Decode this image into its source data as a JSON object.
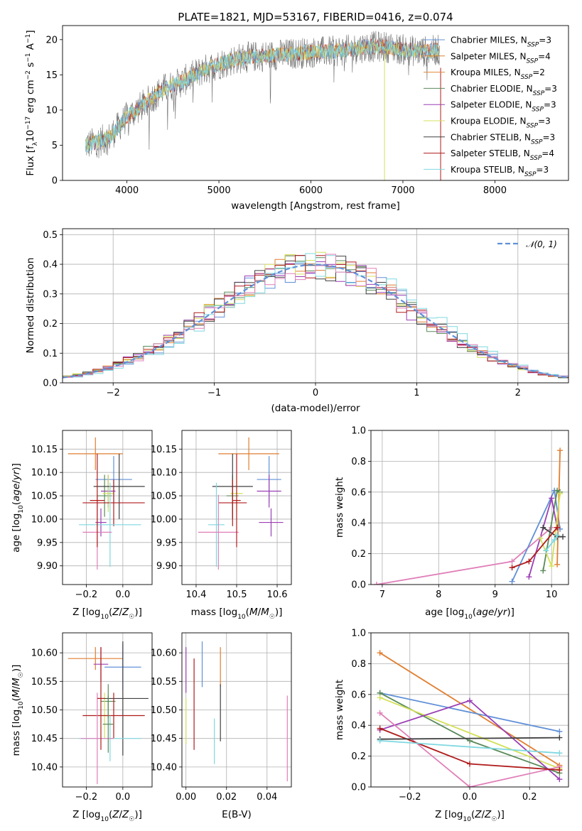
{
  "colors": {
    "chab_miles": "#6090d8",
    "salp_miles": "#e07f30",
    "kroupa_miles": "#e0883a",
    "chab_elodie": "#5a8a5a",
    "salp_elodie": "#9b3fb5",
    "kroupa_elodie": "#d4e05a",
    "chab_stelib": "#404040",
    "salp_stelib": "#b01c1c",
    "kroupa_stelib": "#7fd8e0",
    "pink": "#e07fb8",
    "gray_spec": "#707070",
    "grid": "#b0b0b0",
    "normal_curve": "#6090d8"
  },
  "chart_data": [
    {
      "id": "spectrum",
      "type": "line",
      "title": "PLATE=1821, MJD=53167, FIBERID=0416, z=0.074",
      "xlabel": "wavelength [Angstrom, rest frame]",
      "ylabel_parts": [
        "Flux [f",
        "λ",
        "10",
        "−17",
        " erg cm",
        "−2",
        " s",
        "−1",
        " A",
        "−1",
        "]"
      ],
      "xlim": [
        3300,
        8800
      ],
      "ylim": [
        0,
        22
      ],
      "xticks": [
        4000,
        5000,
        6000,
        7000,
        8000
      ],
      "yticks": [
        0,
        5,
        10,
        15,
        20
      ],
      "continuum": [
        [
          3550,
          5
        ],
        [
          3800,
          6
        ],
        [
          4000,
          9
        ],
        [
          4200,
          11
        ],
        [
          4400,
          13
        ],
        [
          4600,
          14
        ],
        [
          4800,
          15.5
        ],
        [
          5000,
          16.5
        ],
        [
          5200,
          17.3
        ],
        [
          5400,
          17.6
        ],
        [
          5600,
          17.8
        ],
        [
          5800,
          18
        ],
        [
          6000,
          18.2
        ],
        [
          6200,
          18.3
        ],
        [
          6400,
          18.5
        ],
        [
          6600,
          19
        ],
        [
          6800,
          19
        ],
        [
          7000,
          18.6
        ],
        [
          7200,
          18.3
        ],
        [
          7400,
          18.5
        ]
      ],
      "legend": [
        {
          "label": "Chabrier MILES, N",
          "sub": "SSP",
          "val": "=3",
          "color": "chab_miles"
        },
        {
          "label": "Salpeter MILES, N",
          "sub": "SSP",
          "val": "=4",
          "color": "salp_miles"
        },
        {
          "label": "Kroupa MILES, N",
          "sub": "SSP",
          "val": "=2",
          "color": "kroupa_miles"
        },
        {
          "label": "Chabrier ELODIE, N",
          "sub": "SSP",
          "val": "=3",
          "color": "chab_elodie"
        },
        {
          "label": "Salpeter ELODIE, N",
          "sub": "SSP",
          "val": "=3",
          "color": "salp_elodie"
        },
        {
          "label": "Kroupa ELODIE, N",
          "sub": "SSP",
          "val": "=3",
          "color": "kroupa_elodie"
        },
        {
          "label": "Chabrier STELIB, N",
          "sub": "SSP",
          "val": "=3",
          "color": "chab_stelib"
        },
        {
          "label": "Salpeter STELIB, N",
          "sub": "SSP",
          "val": "=4",
          "color": "salp_stelib"
        },
        {
          "label": "Kroupa STELIB, N",
          "sub": "SSP",
          "val": "=3",
          "color": "kroupa_stelib"
        }
      ]
    },
    {
      "id": "residuals",
      "type": "line",
      "xlabel": "(data-model)/error",
      "ylabel": "Normed distribution",
      "xlim": [
        -2.5,
        2.5
      ],
      "ylim": [
        0,
        0.52
      ],
      "xticks": [
        -2,
        -1,
        0,
        1,
        2
      ],
      "xtick_labels": [
        "−2",
        "−1",
        "0",
        "1",
        "2"
      ],
      "yticks": [
        0.0,
        0.1,
        0.2,
        0.3,
        0.4,
        0.5
      ],
      "ytick_labels": [
        "0.0",
        "0.1",
        "0.2",
        "0.3",
        "0.4",
        "0.5"
      ],
      "grid": true,
      "legend": {
        "label": "𝒩(0, 1)",
        "position": "top-right"
      }
    },
    {
      "id": "age_vs_Z",
      "type": "scatter",
      "xlabel": "Z [log₁₀(Z/Z☉)]",
      "ylabel": "age  [log₁₀(age/yr)]",
      "xlim": [
        -0.33,
        0.16
      ],
      "ylim": [
        9.86,
        10.19
      ],
      "xticks": [
        -0.2,
        0.0
      ],
      "xtick_labels": [
        "−0.2",
        "0.0"
      ],
      "yticks": [
        9.9,
        9.95,
        10.0,
        10.05,
        10.1,
        10.15
      ],
      "ytick_labels": [
        "9.90",
        "9.95",
        "10.00",
        "10.05",
        "10.10",
        "10.15"
      ],
      "grid": true,
      "points": [
        {
          "x": -0.15,
          "y": 10.14,
          "xe": 0.15,
          "ye": 0.035,
          "color": "salp_miles"
        },
        {
          "x": -0.05,
          "y": 10.085,
          "xe": 0.1,
          "ye": 0.05,
          "color": "chab_miles"
        },
        {
          "x": -0.08,
          "y": 10.06,
          "xe": 0.04,
          "ye": 0.035,
          "color": "salp_elodie"
        },
        {
          "x": -0.1,
          "y": 10.05,
          "xe": 0.04,
          "ye": 0.045,
          "color": "chab_elodie"
        },
        {
          "x": -0.08,
          "y": 10.055,
          "xe": 0.03,
          "ye": 0.04,
          "color": "kroupa_elodie"
        },
        {
          "x": -0.02,
          "y": 10.07,
          "xe": 0.14,
          "ye": 0.07,
          "color": "chab_stelib"
        },
        {
          "x": -0.05,
          "y": 10.035,
          "xe": 0.17,
          "ye": 0.05,
          "color": "salp_stelib"
        },
        {
          "x": -0.12,
          "y": 9.993,
          "xe": 0.03,
          "ye": 0.03,
          "color": "salp_elodie"
        },
        {
          "x": -0.07,
          "y": 9.988,
          "xe": 0.17,
          "ye": 0.09,
          "color": "kroupa_stelib"
        },
        {
          "x": -0.14,
          "y": 9.972,
          "xe": 0.08,
          "ye": 0.08,
          "color": "pink"
        },
        {
          "x": -0.14,
          "y": 10.04,
          "xe": 0.04,
          "ye": 0.1,
          "color": "salp_stelib"
        }
      ]
    },
    {
      "id": "age_vs_mass",
      "type": "scatter",
      "xlabel": "mass [log₁₀(M/M☉)]",
      "xlim": [
        10.365,
        10.635
      ],
      "ylim": [
        9.86,
        10.19
      ],
      "xticks": [
        10.4,
        10.5,
        10.6
      ],
      "xtick_labels": [
        "10.4",
        "10.5",
        "10.6"
      ],
      "yticks": [
        9.9,
        9.95,
        10.0,
        10.05,
        10.1,
        10.15
      ],
      "ytick_labels": [
        "9.90",
        "9.95",
        "10.00",
        "10.05",
        "10.10",
        "10.15"
      ],
      "grid": true,
      "points": [
        {
          "x": 10.53,
          "y": 10.14,
          "xe": 0.075,
          "ye": 0.035,
          "color": "salp_miles"
        },
        {
          "x": 10.58,
          "y": 10.085,
          "xe": 0.03,
          "ye": 0.05,
          "color": "chab_miles"
        },
        {
          "x": 10.58,
          "y": 10.06,
          "xe": 0.03,
          "ye": 0.035,
          "color": "salp_elodie"
        },
        {
          "x": 10.49,
          "y": 10.05,
          "xe": 0.015,
          "ye": 0.045,
          "color": "chab_elodie"
        },
        {
          "x": 10.5,
          "y": 10.055,
          "xe": 0.015,
          "ye": 0.04,
          "color": "kroupa_elodie"
        },
        {
          "x": 10.49,
          "y": 10.07,
          "xe": 0.05,
          "ye": 0.07,
          "color": "chab_stelib"
        },
        {
          "x": 10.49,
          "y": 10.035,
          "xe": 0.035,
          "ye": 0.05,
          "color": "salp_stelib"
        },
        {
          "x": 10.585,
          "y": 9.993,
          "xe": 0.03,
          "ye": 0.03,
          "color": "salp_elodie"
        },
        {
          "x": 10.45,
          "y": 9.988,
          "xe": 0.02,
          "ye": 0.09,
          "color": "kroupa_stelib"
        },
        {
          "x": 10.455,
          "y": 9.972,
          "xe": 0.05,
          "ye": 0.08,
          "color": "pink"
        },
        {
          "x": 10.5,
          "y": 10.04,
          "xe": 0.01,
          "ye": 0.1,
          "color": "salp_stelib"
        }
      ]
    },
    {
      "id": "massweight_vs_age",
      "type": "line",
      "xlabel": "age  [log₁₀(age/yr)]",
      "ylabel": "mass weight",
      "xlim": [
        6.8,
        10.3
      ],
      "ylim": [
        0,
        1.0
      ],
      "xticks": [
        7,
        8,
        9,
        10
      ],
      "yticks": [
        0.0,
        0.2,
        0.4,
        0.6,
        0.8,
        1.0
      ],
      "ytick_labels": [
        "0.0",
        "0.2",
        "0.4",
        "0.6",
        "0.8",
        "1.0"
      ],
      "grid": true,
      "series": [
        {
          "color": "pink",
          "points": [
            [
              6.9,
              0.0
            ],
            [
              9.3,
              0.15
            ],
            [
              10.0,
              0.37
            ]
          ]
        },
        {
          "color": "chab_miles",
          "points": [
            [
              9.3,
              0.02
            ],
            [
              10.05,
              0.61
            ],
            [
              10.15,
              0.36
            ]
          ]
        },
        {
          "color": "salp_miles",
          "points": [
            [
              10.1,
              0.13
            ],
            [
              10.15,
              0.87
            ]
          ]
        },
        {
          "color": "chab_elodie",
          "points": [
            [
              9.85,
              0.09
            ],
            [
              10.1,
              0.61
            ],
            [
              10.15,
              0.6
            ]
          ]
        },
        {
          "color": "salp_elodie",
          "points": [
            [
              9.6,
              0.05
            ],
            [
              10.0,
              0.56
            ],
            [
              10.1,
              0.37
            ]
          ]
        },
        {
          "color": "kroupa_elodie",
          "points": [
            [
              9.8,
              0.3
            ],
            [
              10.0,
              0.12
            ],
            [
              10.15,
              0.59
            ]
          ]
        },
        {
          "color": "chab_stelib",
          "points": [
            [
              9.85,
              0.37
            ],
            [
              10.1,
              0.31
            ],
            [
              10.2,
              0.31
            ]
          ]
        },
        {
          "color": "salp_stelib",
          "points": [
            [
              9.3,
              0.11
            ],
            [
              9.6,
              0.15
            ],
            [
              10.1,
              0.37
            ]
          ]
        },
        {
          "color": "kroupa_stelib",
          "points": [
            [
              9.9,
              0.22
            ],
            [
              10.05,
              0.29
            ],
            [
              10.1,
              0.32
            ]
          ]
        }
      ]
    },
    {
      "id": "mass_vs_Z",
      "type": "scatter",
      "xlabel": "Z [log₁₀(Z/Z☉)]",
      "ylabel": "mass [log₁₀(M/M☉)]",
      "xlim": [
        -0.33,
        0.16
      ],
      "ylim": [
        10.365,
        10.635
      ],
      "xticks": [
        -0.2,
        0.0
      ],
      "xtick_labels": [
        "−0.2",
        "0.0"
      ],
      "yticks": [
        10.4,
        10.45,
        10.5,
        10.55,
        10.6
      ],
      "ytick_labels": [
        "10.40",
        "10.45",
        "10.50",
        "10.55",
        "10.60"
      ],
      "grid": true,
      "points": [
        {
          "x": -0.15,
          "y": 10.59,
          "xe": 0.15,
          "ye": 0.02,
          "color": "salp_miles"
        },
        {
          "x": 0.0,
          "y": 10.575,
          "xe": 0.1,
          "ye": 0.04,
          "color": "chab_miles"
        },
        {
          "x": -0.12,
          "y": 10.58,
          "xe": 0.04,
          "ye": 0.03,
          "color": "salp_elodie"
        },
        {
          "x": -0.08,
          "y": 10.515,
          "xe": 0.04,
          "ye": 0.03,
          "color": "chab_elodie"
        },
        {
          "x": -0.1,
          "y": 10.49,
          "xe": 0.04,
          "ye": 0.04,
          "color": "kroupa_elodie"
        },
        {
          "x": 0.0,
          "y": 10.52,
          "xe": 0.14,
          "ye": 0.1,
          "color": "chab_stelib"
        },
        {
          "x": -0.05,
          "y": 10.49,
          "xe": 0.17,
          "ye": 0.04,
          "color": "salp_stelib"
        },
        {
          "x": -0.07,
          "y": 10.45,
          "xe": 0.17,
          "ye": 0.04,
          "color": "kroupa_stelib"
        },
        {
          "x": -0.14,
          "y": 10.45,
          "xe": 0.09,
          "ye": 0.08,
          "color": "pink"
        },
        {
          "x": -0.12,
          "y": 10.52,
          "xe": 0.02,
          "ye": 0.09,
          "color": "salp_stelib"
        },
        {
          "x": -0.08,
          "y": 10.475,
          "xe": 0.03,
          "ye": 0.05,
          "color": "chab_elodie"
        }
      ]
    },
    {
      "id": "mass_vs_ebv",
      "type": "scatter",
      "xlabel": "E(B-V)",
      "xlim": [
        -0.002,
        0.052
      ],
      "ylim": [
        10.365,
        10.635
      ],
      "xticks": [
        0.0,
        0.02,
        0.04
      ],
      "xtick_labels": [
        "0.00",
        "0.02",
        "0.04"
      ],
      "yticks": [
        10.4,
        10.45,
        10.5,
        10.55,
        10.6
      ],
      "ytick_labels": [
        "10.40",
        "10.45",
        "10.50",
        "10.55",
        "10.60"
      ],
      "grid": true,
      "points": [
        {
          "x": 0.0,
          "y": 10.57,
          "ye": 0.04,
          "color": "salp_elodie"
        },
        {
          "x": 0.0,
          "y": 10.48,
          "ye": 0.04,
          "color": "kroupa_elodie"
        },
        {
          "x": 0.004,
          "y": 10.51,
          "ye": 0.08,
          "color": "salp_stelib"
        },
        {
          "x": 0.008,
          "y": 10.58,
          "ye": 0.04,
          "color": "chab_miles"
        },
        {
          "x": 0.014,
          "y": 10.445,
          "ye": 0.04,
          "color": "kroupa_stelib"
        },
        {
          "x": 0.017,
          "y": 10.575,
          "ye": 0.035,
          "color": "salp_miles"
        },
        {
          "x": 0.017,
          "y": 10.495,
          "ye": 0.05,
          "color": "chab_stelib"
        },
        {
          "x": 0.05,
          "y": 10.45,
          "ye": 0.075,
          "color": "pink"
        }
      ]
    },
    {
      "id": "massweight_vs_Z",
      "type": "line",
      "xlabel": "Z [log₁₀(Z/Z☉)]",
      "ylabel": "mass weight",
      "xlim": [
        -0.33,
        0.33
      ],
      "ylim": [
        0,
        1.0
      ],
      "xticks": [
        -0.2,
        0.0,
        0.2
      ],
      "xtick_labels": [
        "−0.2",
        "0.0",
        "0.2"
      ],
      "yticks": [
        0.0,
        0.2,
        0.4,
        0.6,
        0.8,
        1.0
      ],
      "ytick_labels": [
        "0.0",
        "0.2",
        "0.4",
        "0.6",
        "0.8",
        "1.0"
      ],
      "grid": true,
      "series": [
        {
          "color": "salp_miles",
          "points": [
            [
              -0.3,
              0.87
            ],
            [
              0.3,
              0.14
            ]
          ]
        },
        {
          "color": "chab_miles",
          "points": [
            [
              -0.3,
              0.61
            ],
            [
              0.3,
              0.36
            ]
          ]
        },
        {
          "color": "chab_elodie",
          "points": [
            [
              -0.3,
              0.61
            ],
            [
              0.0,
              0.3
            ],
            [
              0.3,
              0.09
            ]
          ]
        },
        {
          "color": "kroupa_elodie",
          "points": [
            [
              -0.3,
              0.58
            ],
            [
              0.3,
              0.12
            ]
          ]
        },
        {
          "color": "salp_elodie",
          "points": [
            [
              -0.3,
              0.37
            ],
            [
              0.0,
              0.56
            ],
            [
              0.3,
              0.05
            ]
          ]
        },
        {
          "color": "pink",
          "points": [
            [
              -0.3,
              0.48
            ],
            [
              0.0,
              0.0
            ],
            [
              0.3,
              0.13
            ]
          ]
        },
        {
          "color": "salp_stelib",
          "points": [
            [
              -0.3,
              0.38
            ],
            [
              0.0,
              0.15
            ],
            [
              0.3,
              0.11
            ]
          ]
        },
        {
          "color": "chab_stelib",
          "points": [
            [
              -0.3,
              0.31
            ],
            [
              0.3,
              0.32
            ]
          ]
        },
        {
          "color": "kroupa_stelib",
          "points": [
            [
              -0.3,
              0.3
            ],
            [
              0.3,
              0.22
            ]
          ]
        }
      ]
    }
  ]
}
